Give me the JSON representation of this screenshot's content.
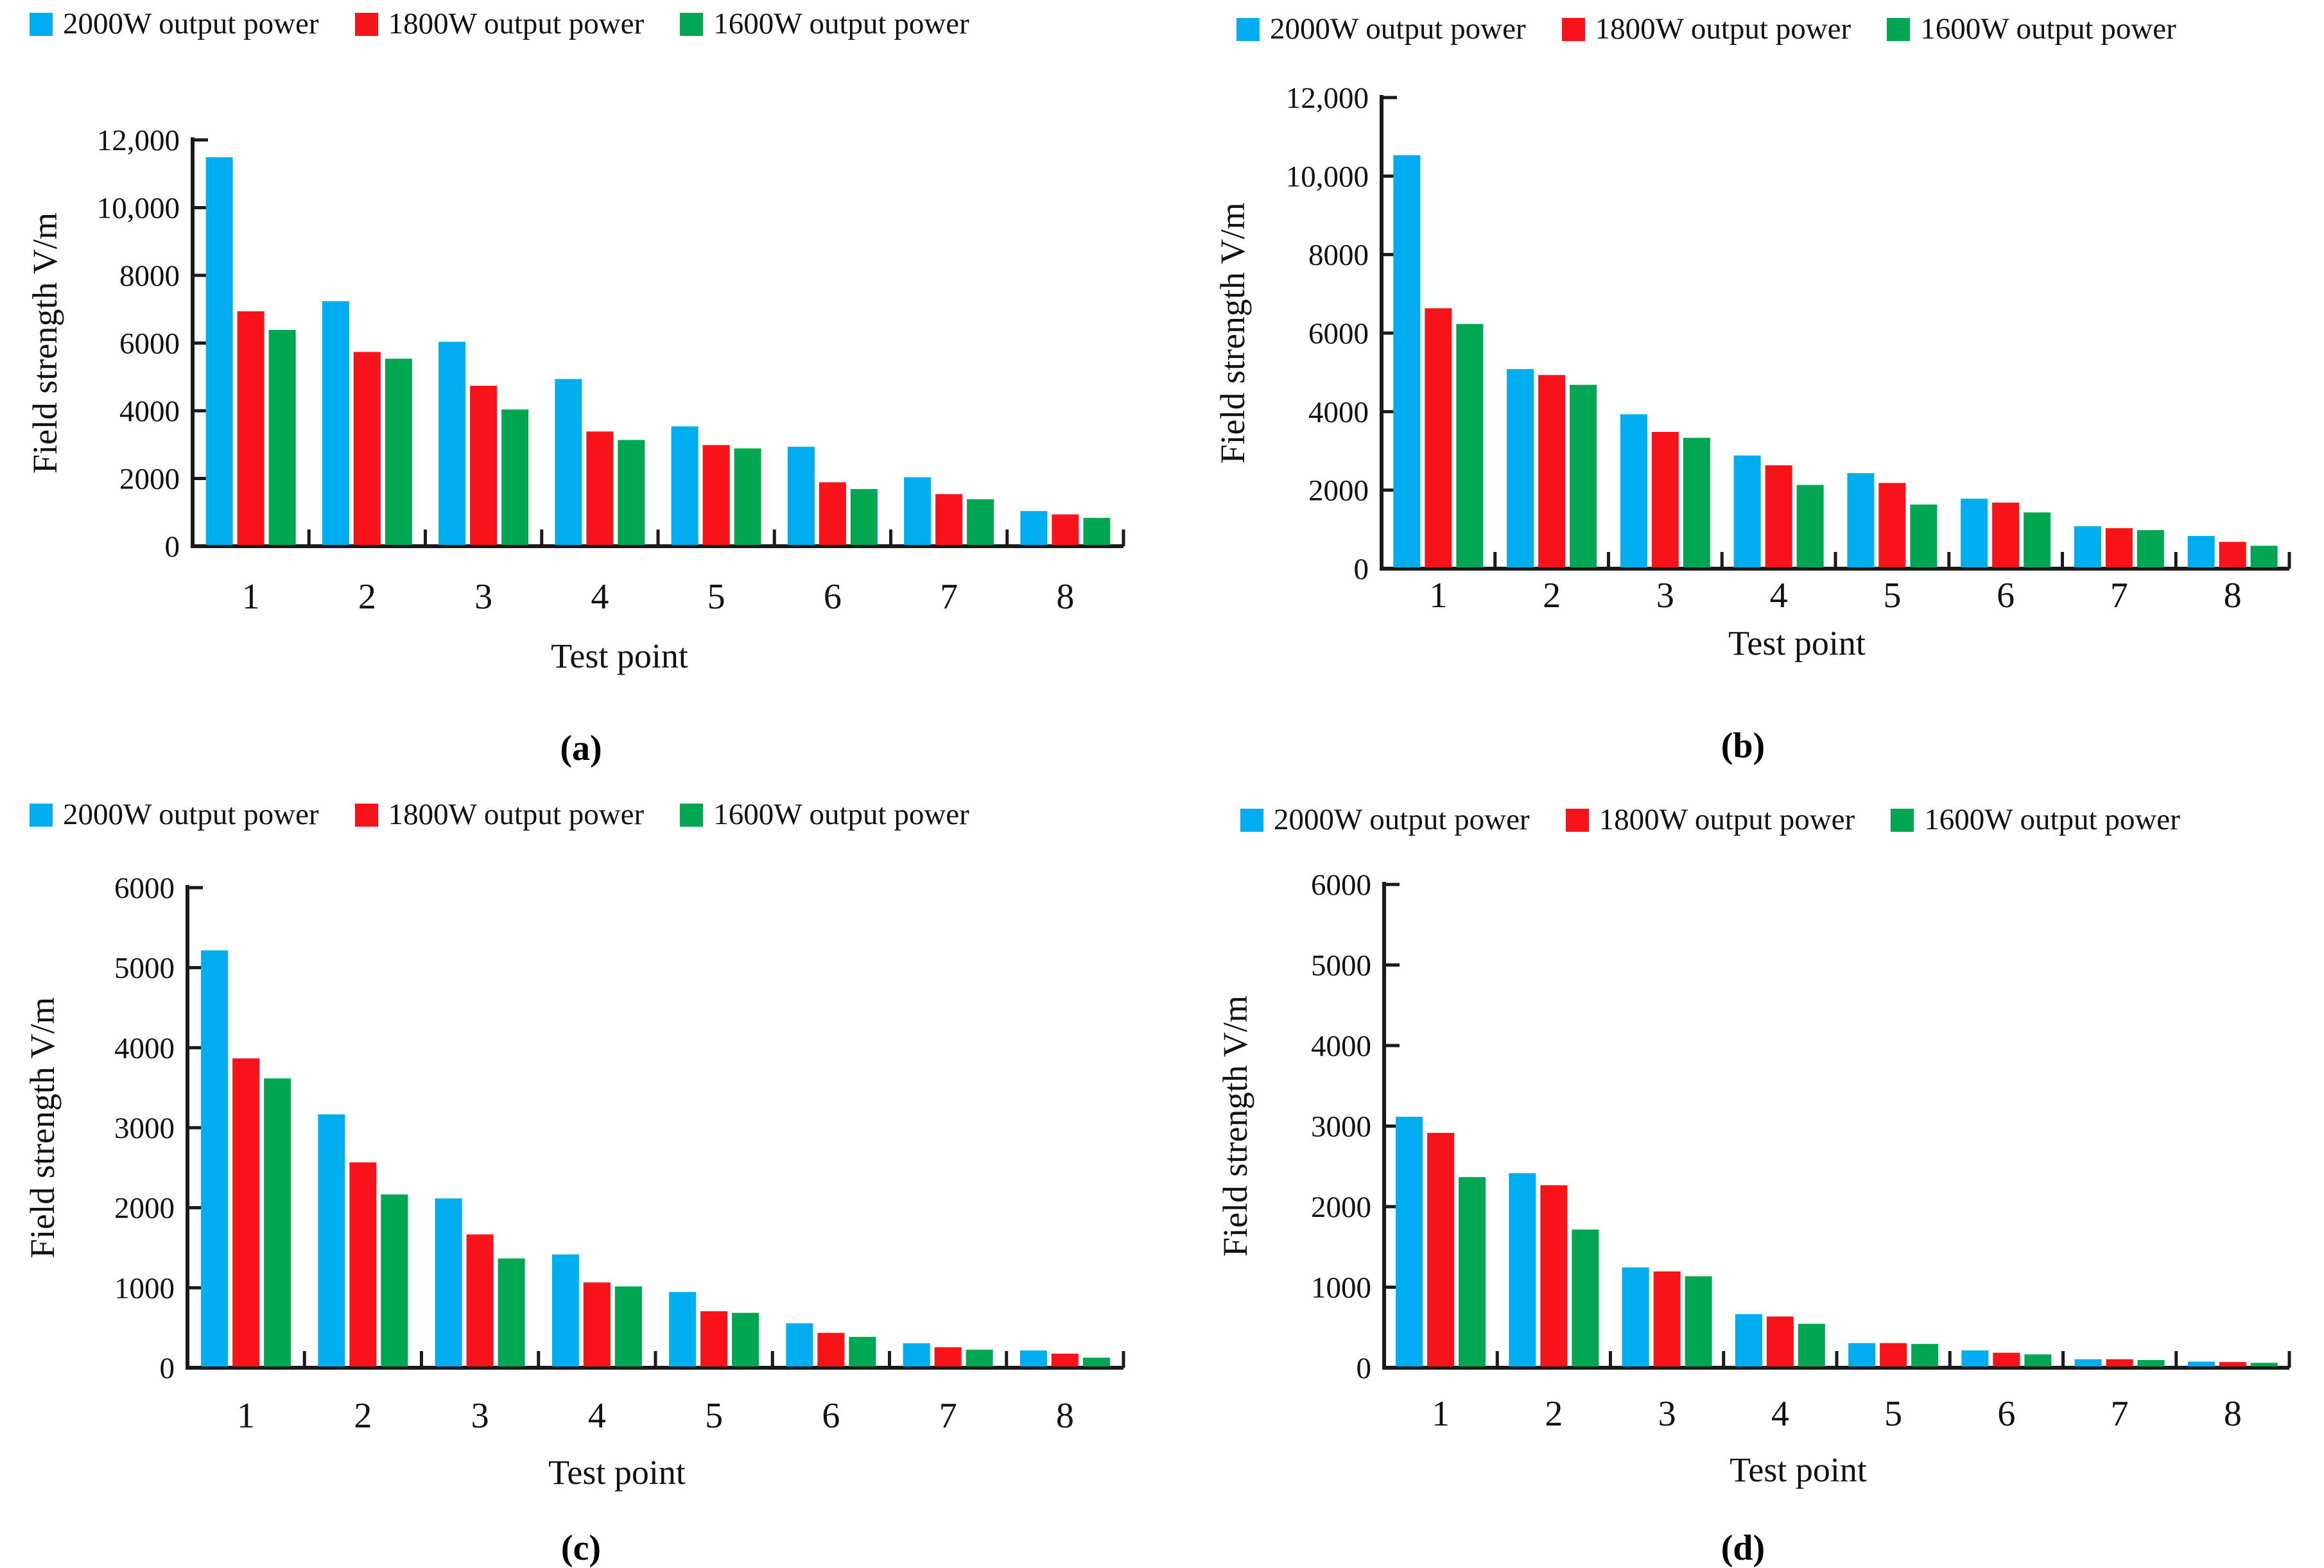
{
  "page": {
    "background": "#ffffff"
  },
  "colors": {
    "s2000": "#00AEEF",
    "s1800": "#F8121A",
    "s1600": "#00A651",
    "axis": "#1a1a1a",
    "text": "#111111"
  },
  "chart_data": [
    {
      "id": "a",
      "caption": "(a)",
      "type": "bar",
      "xlabel": "Test point",
      "ylabel": "Field strength V/m",
      "categories": [
        "1",
        "2",
        "3",
        "4",
        "5",
        "6",
        "7",
        "8"
      ],
      "ylim": [
        0,
        12000
      ],
      "grid": false,
      "legend_position": "top",
      "yticks": [
        {
          "value": 12000,
          "label": "12,000"
        },
        {
          "value": 10000,
          "label": "10,000"
        },
        {
          "value": 8000,
          "label": "8000"
        },
        {
          "value": 6000,
          "label": "6000"
        },
        {
          "value": 4000,
          "label": "4000"
        },
        {
          "value": 2000,
          "label": "2000"
        },
        {
          "value": 0,
          "label": "0"
        }
      ],
      "series": [
        {
          "name": "2000W output power",
          "color": "s2000",
          "values": [
            11450,
            7200,
            6000,
            4900,
            3500,
            2900,
            2000,
            1000
          ]
        },
        {
          "name": "1800W output power",
          "color": "s1800",
          "values": [
            6900,
            5700,
            4700,
            3350,
            2950,
            1850,
            1500,
            900
          ]
        },
        {
          "name": "1600W output power",
          "color": "s1600",
          "values": [
            6350,
            5500,
            4000,
            3100,
            2850,
            1650,
            1350,
            800
          ]
        }
      ]
    },
    {
      "id": "b",
      "caption": "(b)",
      "type": "bar",
      "xlabel": "Test point",
      "ylabel": "Field strength V/m",
      "categories": [
        "1",
        "2",
        "3",
        "4",
        "5",
        "6",
        "7",
        "8"
      ],
      "ylim": [
        0,
        12000
      ],
      "grid": false,
      "legend_position": "top",
      "yticks": [
        {
          "value": 12000,
          "label": "12,000"
        },
        {
          "value": 10000,
          "label": "10,000"
        },
        {
          "value": 8000,
          "label": "8000"
        },
        {
          "value": 6000,
          "label": "6000"
        },
        {
          "value": 4000,
          "label": "4000"
        },
        {
          "value": 2000,
          "label": "2000"
        },
        {
          "value": 0,
          "label": "0"
        }
      ],
      "series": [
        {
          "name": "2000W output power",
          "color": "s2000",
          "values": [
            10500,
            5050,
            3900,
            2850,
            2400,
            1750,
            1050,
            800
          ]
        },
        {
          "name": "1800W output power",
          "color": "s1800",
          "values": [
            6600,
            4900,
            3450,
            2600,
            2150,
            1650,
            1000,
            650
          ]
        },
        {
          "name": "1600W output power",
          "color": "s1600",
          "values": [
            6200,
            4650,
            3300,
            2100,
            1600,
            1400,
            950,
            550
          ]
        }
      ]
    },
    {
      "id": "c",
      "caption": "(c)",
      "type": "bar",
      "xlabel": "Test point",
      "ylabel": "Field strength V/m",
      "categories": [
        "1",
        "2",
        "3",
        "4",
        "5",
        "6",
        "7",
        "8"
      ],
      "ylim": [
        0,
        6000
      ],
      "grid": false,
      "legend_position": "top",
      "yticks": [
        {
          "value": 6000,
          "label": "6000"
        },
        {
          "value": 5000,
          "label": "5000"
        },
        {
          "value": 4000,
          "label": "4000"
        },
        {
          "value": 3000,
          "label": "3000"
        },
        {
          "value": 2000,
          "label": "2000"
        },
        {
          "value": 1000,
          "label": "1000"
        },
        {
          "value": 0,
          "label": "0"
        }
      ],
      "series": [
        {
          "name": "2000W output power",
          "color": "s2000",
          "values": [
            5200,
            3150,
            2100,
            1400,
            930,
            540,
            290,
            200
          ]
        },
        {
          "name": "1800W output power",
          "color": "s1800",
          "values": [
            3850,
            2550,
            1650,
            1050,
            690,
            420,
            240,
            160
          ]
        },
        {
          "name": "1600W output power",
          "color": "s1600",
          "values": [
            3600,
            2150,
            1350,
            1000,
            670,
            370,
            210,
            110
          ]
        }
      ]
    },
    {
      "id": "d",
      "caption": "(d)",
      "type": "bar",
      "xlabel": "Test point",
      "ylabel": "Field strength V/m",
      "categories": [
        "1",
        "2",
        "3",
        "4",
        "5",
        "6",
        "7",
        "8"
      ],
      "ylim": [
        0,
        6000
      ],
      "grid": false,
      "legend_position": "top",
      "yticks": [
        {
          "value": 6000,
          "label": "6000"
        },
        {
          "value": 5000,
          "label": "5000"
        },
        {
          "value": 4000,
          "label": "4000"
        },
        {
          "value": 3000,
          "label": "3000"
        },
        {
          "value": 2000,
          "label": "2000"
        },
        {
          "value": 1000,
          "label": "1000"
        },
        {
          "value": 0,
          "label": "0"
        }
      ],
      "series": [
        {
          "name": "2000W output power",
          "color": "s2000",
          "values": [
            3100,
            2400,
            1230,
            650,
            290,
            200,
            90,
            60
          ]
        },
        {
          "name": "1800W output power",
          "color": "s1800",
          "values": [
            2900,
            2250,
            1180,
            620,
            290,
            170,
            90,
            55
          ]
        },
        {
          "name": "1600W output power",
          "color": "s1600",
          "values": [
            2350,
            1700,
            1120,
            530,
            280,
            150,
            80,
            45
          ]
        }
      ]
    }
  ]
}
